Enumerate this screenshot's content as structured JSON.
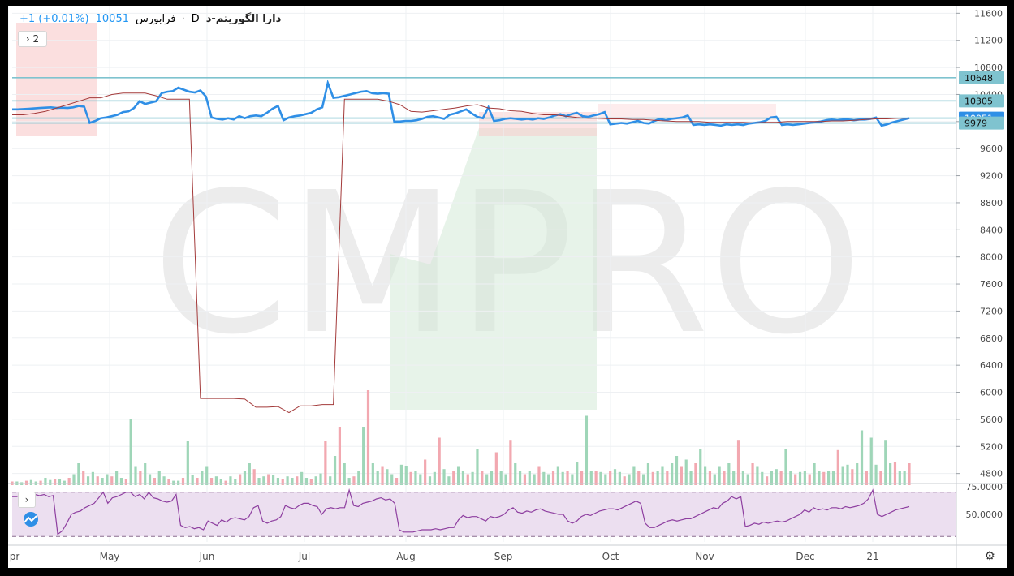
{
  "header": {
    "symbol": "دارا الگوریتم-د",
    "interval": "D",
    "dot": "·",
    "exchange": "فرابورس",
    "price": "10051",
    "change": "+1 (+0.01%)",
    "collapse_label": "2"
  },
  "watermark": "CMPRO",
  "colors": {
    "price_line": "#2f8fe6",
    "ma_line": "#a33a3a",
    "hline": "#7fc3cf",
    "vol_up": "#9fd6b8",
    "vol_down": "#f2a8b0",
    "cloud_green": "#cfe8d4",
    "cloud_red": "#f9c9ca",
    "rsi_band": "#ecdff0",
    "rsi_line": "#8e3fa0"
  },
  "chart_data": {
    "type": "line",
    "y_ticks": [
      "11600",
      "11200",
      "10800",
      "10400",
      "10000",
      "9600",
      "9200",
      "8800",
      "8400",
      "8000",
      "7600",
      "7200",
      "6800",
      "6400",
      "6000",
      "5600",
      "5200",
      "4800"
    ],
    "ylim": [
      4700,
      11700
    ],
    "x_ticks": [
      "pr",
      "May",
      "Jun",
      "Jul",
      "Aug",
      "Sep",
      "Oct",
      "Nov",
      "Dec",
      "21"
    ],
    "levels": [
      {
        "value": 10648,
        "label": "10648"
      },
      {
        "value": 10305,
        "label": "10305"
      },
      {
        "value": 10051,
        "label": "10051"
      },
      {
        "value": 9979,
        "label": "9979"
      }
    ],
    "series": [
      {
        "values": [
          10180,
          10180,
          10185,
          10190,
          10195,
          10200,
          10205,
          10210,
          10200,
          10205,
          10200,
          10210,
          10230,
          10220,
          9980,
          10010,
          10050,
          10060,
          10080,
          10100,
          10140,
          10150,
          10200,
          10300,
          10260,
          10280,
          10300,
          10420,
          10440,
          10450,
          10500,
          10470,
          10440,
          10430,
          10460,
          10370,
          10060,
          10040,
          10030,
          10050,
          10030,
          10080,
          10050,
          10080,
          10090,
          10080,
          10130,
          10190,
          10230,
          10020,
          10060,
          10080,
          10090,
          10110,
          10130,
          10180,
          10210,
          10570,
          10350,
          10360,
          10380,
          10400,
          10420,
          10440,
          10450,
          10420,
          10410,
          10420,
          10410,
          10000,
          10000,
          10010,
          10010,
          10020,
          10040,
          10070,
          10080,
          10060,
          10040,
          10100,
          10120,
          10150,
          10180,
          10120,
          10070,
          10050,
          10210,
          10010,
          10020,
          10040,
          10050,
          10040,
          10030,
          10040,
          10030,
          10050,
          10040,
          10060,
          10090,
          10110,
          10080,
          10110,
          10130,
          10080,
          10070,
          10090,
          10110,
          10140,
          9960,
          9970,
          9980,
          9970,
          9990,
          10010,
          9980,
          9970,
          10010,
          10040,
          10020,
          10040,
          10050,
          10060,
          10090,
          9950,
          9960,
          9950,
          9960,
          9950,
          9940,
          9960,
          9950,
          9960,
          9950,
          9970,
          9980,
          9990,
          10010,
          10060,
          10070,
          9950,
          9960,
          9950,
          9960,
          9970,
          9980,
          9990,
          10000,
          10020,
          10030,
          10020,
          10030,
          10030,
          10020,
          10030,
          10030,
          10040,
          10060,
          9940,
          9960,
          9990,
          10010,
          10030,
          10051
        ]
      },
      {
        "values": [
          10100,
          10100,
          10120,
          10150,
          10200,
          10250,
          10300,
          10350,
          10350,
          10400,
          10420,
          10420,
          10420,
          10380,
          10330,
          10330,
          10330,
          5910,
          5910,
          5910,
          5910,
          5900,
          5780,
          5780,
          5790,
          5700,
          5800,
          5800,
          5820,
          5820,
          10330,
          10330,
          10330,
          10330,
          10300,
          10250,
          10150,
          10140,
          10160,
          10180,
          10200,
          10230,
          10250,
          10200,
          10190,
          10160,
          10150,
          10120,
          10100,
          10100,
          10080,
          10060,
          10050,
          10050,
          10040,
          10040,
          10030,
          10030,
          10020,
          10010,
          10000,
          10000,
          10000,
          9990,
          9990,
          9990,
          9990,
          9980,
          9990,
          9990,
          10000,
          10000,
          10000,
          10000,
          10010,
          10010,
          10020,
          10030,
          10040,
          10040,
          10050,
          10051
        ]
      }
    ],
    "volume": [
      0.05,
      0.05,
      0.04,
      0.06,
      0.07,
      0.05,
      0.06,
      0.1,
      0.07,
      0.08,
      0.08,
      0.06,
      0.1,
      0.15,
      0.3,
      0.2,
      0.12,
      0.18,
      0.12,
      0.1,
      0.15,
      0.12,
      0.2,
      0.1,
      0.08,
      0.9,
      0.25,
      0.2,
      0.3,
      0.15,
      0.1,
      0.2,
      0.12,
      0.08,
      0.06,
      0.06,
      0.1,
      0.6,
      0.14,
      0.1,
      0.2,
      0.25,
      0.1,
      0.12,
      0.08,
      0.06,
      0.12,
      0.08,
      0.15,
      0.2,
      0.3,
      0.22,
      0.1,
      0.12,
      0.15,
      0.14,
      0.1,
      0.08,
      0.12,
      0.1,
      0.12,
      0.18,
      0.1,
      0.08,
      0.12,
      0.16,
      0.6,
      0.12,
      0.4,
      0.8,
      0.3,
      0.1,
      0.12,
      0.2,
      0.8,
      1.3,
      0.3,
      0.2,
      0.25,
      0.22,
      0.15,
      0.1,
      0.28,
      0.26,
      0.18,
      0.2,
      0.15,
      0.35,
      0.12,
      0.18,
      0.65,
      0.22,
      0.12,
      0.2,
      0.25,
      0.2,
      0.15,
      0.18,
      0.5,
      0.2,
      0.15,
      0.2,
      0.45,
      0.2,
      0.15,
      0.62,
      0.3,
      0.2,
      0.15,
      0.2,
      0.15,
      0.25,
      0.18,
      0.15,
      0.2,
      0.25,
      0.18,
      0.2,
      0.15,
      0.32,
      0.2,
      0.95,
      0.2,
      0.2,
      0.18,
      0.15,
      0.2,
      0.22,
      0.18,
      0.12,
      0.15,
      0.25,
      0.2,
      0.15,
      0.3,
      0.18,
      0.2,
      0.25,
      0.2,
      0.3,
      0.4,
      0.25,
      0.35,
      0.2,
      0.3,
      0.5,
      0.25,
      0.2,
      0.15,
      0.25,
      0.2,
      0.3,
      0.2,
      0.62,
      0.2,
      0.15,
      0.3,
      0.25,
      0.18,
      0.12,
      0.2,
      0.22,
      0.2,
      0.5,
      0.2,
      0.15,
      0.18,
      0.2,
      0.15,
      0.3,
      0.2,
      0.18,
      0.2,
      0.2,
      0.48,
      0.25,
      0.28,
      0.22,
      0.3,
      0.75,
      0.2,
      0.65,
      0.28,
      0.2,
      0.62,
      0.3,
      0.32,
      0.2,
      0.2,
      0.3
    ],
    "rsi": {
      "ticks": [
        "75.0000",
        "50.0000"
      ],
      "upper": 70,
      "lower": 30,
      "ylim": [
        25,
        75
      ],
      "values": [
        66,
        66,
        68,
        67,
        69,
        68,
        67,
        68,
        66,
        67,
        32,
        35,
        42,
        50,
        52,
        53,
        56,
        58,
        60,
        65,
        70,
        60,
        65,
        66,
        68,
        70,
        70,
        66,
        68,
        64,
        70,
        65,
        64,
        62,
        61,
        62,
        68,
        40,
        38,
        39,
        37,
        38,
        36,
        44,
        42,
        40,
        45,
        43,
        46,
        47,
        46,
        45,
        48,
        56,
        58,
        44,
        42,
        44,
        45,
        48,
        58,
        56,
        55,
        58,
        60,
        60,
        58,
        57,
        50,
        55,
        56,
        55,
        56,
        56,
        72,
        58,
        57,
        60,
        61,
        62,
        64,
        65,
        63,
        64,
        60,
        36,
        34,
        34,
        34,
        35,
        36,
        36,
        36,
        37,
        36,
        37,
        38,
        38,
        45,
        49,
        47,
        48,
        48,
        46,
        44,
        48,
        47,
        48,
        50,
        54,
        56,
        52,
        51,
        53,
        52,
        54,
        55,
        53,
        52,
        51,
        50,
        50,
        44,
        42,
        44,
        48,
        50,
        49,
        51,
        53,
        54,
        55,
        55,
        54,
        56,
        58,
        60,
        62,
        60,
        42,
        38,
        38,
        40,
        42,
        44,
        45,
        44,
        45,
        46,
        46,
        48,
        50,
        52,
        54,
        56,
        55,
        60,
        62,
        66,
        64,
        66,
        39,
        40,
        42,
        41,
        43,
        42,
        43,
        44,
        43,
        44,
        46,
        48,
        50,
        54,
        52,
        56,
        54,
        55,
        54,
        56,
        56,
        55,
        57,
        56,
        57,
        58,
        60,
        64,
        72,
        50,
        48,
        50,
        52,
        54,
        55,
        56,
        57
      ]
    }
  }
}
